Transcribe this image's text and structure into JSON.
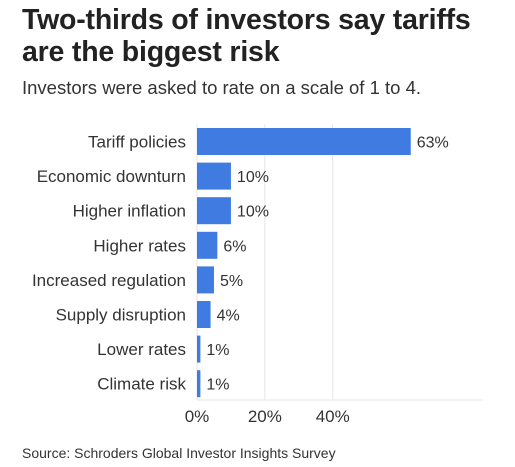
{
  "title": "Two-thirds of investors say tariffs are the biggest risk",
  "subtitle": "Investors were asked to rate on a scale of 1 to 4.",
  "source": "Source: Schroders Global Investor Insights Survey",
  "colors": {
    "bar": "#3f7be0",
    "grid": "#e5e5e5",
    "text": "#333333"
  },
  "chart_data": {
    "type": "bar",
    "orientation": "horizontal",
    "categories": [
      "Tariff policies",
      "Economic downturn",
      "Higher inflation",
      "Higher rates",
      "Increased regulation",
      "Supply disruption",
      "Lower rates",
      "Climate risk"
    ],
    "values": [
      63,
      10,
      10,
      6,
      5,
      4,
      1,
      1
    ],
    "value_labels": [
      "63%",
      "10%",
      "10%",
      "6%",
      "5%",
      "4%",
      "1%",
      "1%"
    ],
    "xticks": [
      0,
      20,
      40
    ],
    "xtick_labels": [
      "0%",
      "20%",
      "40%"
    ],
    "xlim": [
      0,
      84
    ],
    "grid": true,
    "title": "",
    "xlabel": "",
    "ylabel": ""
  }
}
